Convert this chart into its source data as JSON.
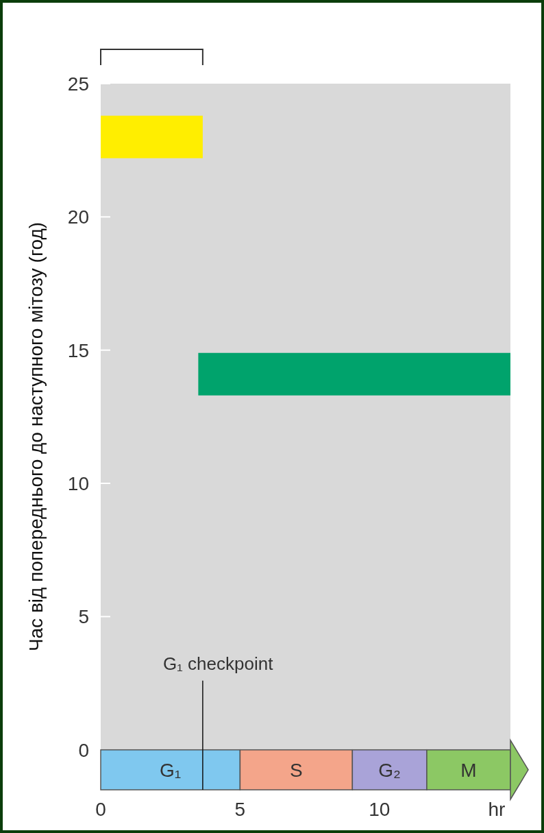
{
  "chart_data": {
    "type": "line",
    "ylabel": "Час від попереднього до наступного мітозу (год)",
    "xlabel": "hr",
    "xlim": [
      0,
      14.7
    ],
    "xticks": [
      0,
      5,
      10
    ],
    "ylim": [
      -1.5,
      25
    ],
    "yticks": [
      0,
      5,
      10,
      15,
      20,
      25
    ],
    "series": [
      {
        "color": "#ffee00",
        "x": [
          0,
          3.66
        ],
        "values": [
          23,
          23
        ]
      },
      {
        "color": "#00a36c",
        "x": [
          3.5,
          14.7
        ],
        "values": [
          14.1,
          14.1
        ]
      }
    ],
    "ref_lines": [
      {
        "axis": "x",
        "value": 3.66,
        "label": "G₁ checkpoint"
      }
    ],
    "bands": [
      {
        "axis": "x",
        "from": 0,
        "to": 5,
        "label": "G₁",
        "color": "#7fc8ef"
      },
      {
        "axis": "x",
        "from": 5,
        "to": 9.03,
        "label": "S",
        "color": "#f4a58a"
      },
      {
        "axis": "x",
        "from": 9.03,
        "to": 11.7,
        "label": "G₂",
        "color": "#a9a3d8"
      },
      {
        "axis": "x",
        "from": 11.7,
        "to": 14.7,
        "label": "M",
        "color": "#8cc864"
      }
    ],
    "grid": false,
    "marker": "none",
    "line_style": "solid"
  }
}
